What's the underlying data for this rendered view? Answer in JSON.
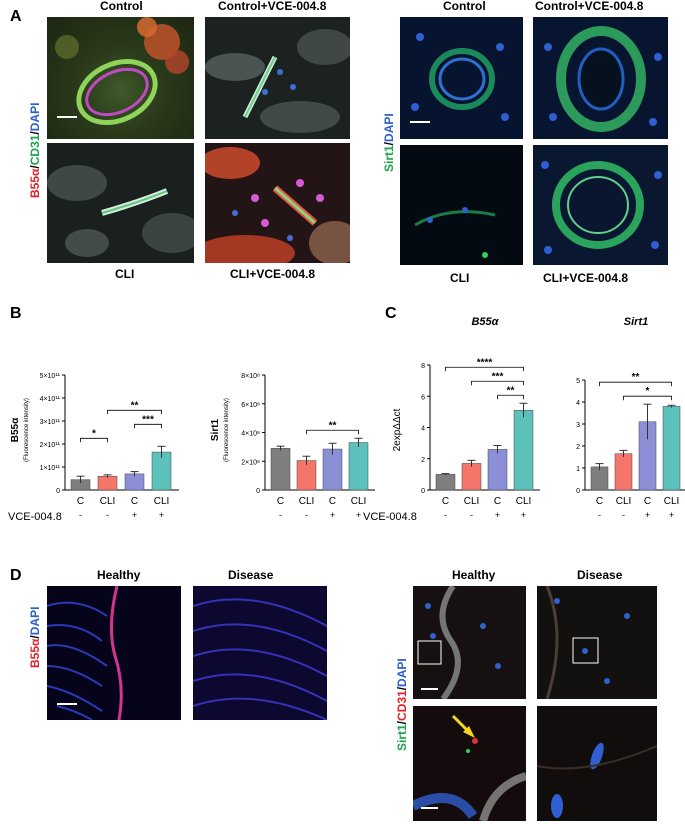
{
  "panelA": {
    "letter": "A",
    "left": {
      "col1": "Control",
      "col2": "Control+VCE-004.8",
      "row2_col1": "CLI",
      "row2_col2": "CLI+VCE-004.8",
      "stain_b55": "B55α",
      "stain_cd31": "CD31",
      "stain_dapi": "DAPI"
    },
    "right": {
      "col1": "Control",
      "col2": "Control+VCE-004.8",
      "row2_col1": "CLI",
      "row2_col2": "CLI+VCE-004.8",
      "stain_sirt1": "Sirt1",
      "stain_dapi": "DAPI"
    }
  },
  "panelB": {
    "letter": "B",
    "vce_label": "VCE-004.8"
  },
  "panelC": {
    "letter": "C",
    "vce_label": "VCE-004.8"
  },
  "panelD": {
    "letter": "D",
    "left": {
      "col1": "Healthy",
      "col2": "Disease",
      "stain_b55": "B55α",
      "stain_dapi": "DAPI"
    },
    "right": {
      "col1": "Healthy",
      "col2": "Disease",
      "stain_sirt1": "Sirt1",
      "stain_cd31": "CD31",
      "stain_dapi": "DAPI"
    }
  },
  "chart_data": [
    {
      "type": "bar",
      "title": "",
      "ylabel": "B55α (Fluorescence intensity)",
      "categories": [
        "C",
        "CLI",
        "C",
        "CLI"
      ],
      "treatment": [
        "-",
        "-",
        "+",
        "+"
      ],
      "values": [
        45000000000.0,
        60000000000.0,
        70000000000.0,
        165000000000.0
      ],
      "errors": [
        15000000000.0,
        6000000000.0,
        10000000000.0,
        25000000000.0
      ],
      "colors": [
        "#7f7f7f",
        "#f4766a",
        "#8b8fd6",
        "#5cc0bb"
      ],
      "ylim": [
        0,
        500000000000.0
      ],
      "yticks": [
        "0",
        "1×10¹¹",
        "2×10¹¹",
        "3×10¹¹",
        "4×10¹¹",
        "5×10¹¹"
      ],
      "significance": [
        {
          "from": 0,
          "to": 1,
          "label": "*"
        },
        {
          "from": 1,
          "to": 3,
          "label": "**"
        },
        {
          "from": 2,
          "to": 3,
          "label": "***"
        }
      ]
    },
    {
      "type": "bar",
      "title": "",
      "ylabel": "Sirt1 (Fluorescence intensity)",
      "categories": [
        "C",
        "CLI",
        "C",
        "CLI"
      ],
      "treatment": [
        "-",
        "-",
        "+",
        "+"
      ],
      "values": [
        290000000.0,
        205000000.0,
        285000000.0,
        330000000.0
      ],
      "errors": [
        15000000.0,
        30000000.0,
        40000000.0,
        30000000.0
      ],
      "colors": [
        "#7f7f7f",
        "#f4766a",
        "#8b8fd6",
        "#5cc0bb"
      ],
      "ylim": [
        0,
        800000000.0
      ],
      "yticks": [
        "0",
        "2×10⁸",
        "4×10⁸",
        "6×10⁸",
        "8×10⁸"
      ],
      "significance": [
        {
          "from": 1,
          "to": 3,
          "label": "**"
        }
      ]
    },
    {
      "type": "bar",
      "title": "B55α",
      "ylabel": "2expΔΔct",
      "categories": [
        "C",
        "CLI",
        "C",
        "CLI"
      ],
      "treatment": [
        "-",
        "-",
        "+",
        "+"
      ],
      "values": [
        1.0,
        1.7,
        2.6,
        5.1
      ],
      "errors": [
        0.05,
        0.2,
        0.25,
        0.45
      ],
      "colors": [
        "#7f7f7f",
        "#f4766a",
        "#8b8fd6",
        "#5cc0bb"
      ],
      "ylim": [
        0,
        8
      ],
      "yticks": [
        "0",
        "2",
        "4",
        "6",
        "8"
      ],
      "significance": [
        {
          "from": 0,
          "to": 3,
          "label": "****"
        },
        {
          "from": 1,
          "to": 3,
          "label": "***"
        },
        {
          "from": 2,
          "to": 3,
          "label": "**"
        }
      ]
    },
    {
      "type": "bar",
      "title": "Sirt1",
      "ylabel": "",
      "categories": [
        "C",
        "CLI",
        "C",
        "CLI"
      ],
      "treatment": [
        "-",
        "-",
        "+",
        "+"
      ],
      "values": [
        1.05,
        1.65,
        3.1,
        3.8
      ],
      "errors": [
        0.15,
        0.15,
        0.8,
        0.05
      ],
      "colors": [
        "#7f7f7f",
        "#f4766a",
        "#8b8fd6",
        "#5cc0bb"
      ],
      "ylim": [
        0,
        5
      ],
      "yticks": [
        "0",
        "1",
        "2",
        "3",
        "4",
        "5"
      ],
      "significance": [
        {
          "from": 0,
          "to": 3,
          "label": "**"
        },
        {
          "from": 1,
          "to": 3,
          "label": "*"
        }
      ]
    }
  ]
}
